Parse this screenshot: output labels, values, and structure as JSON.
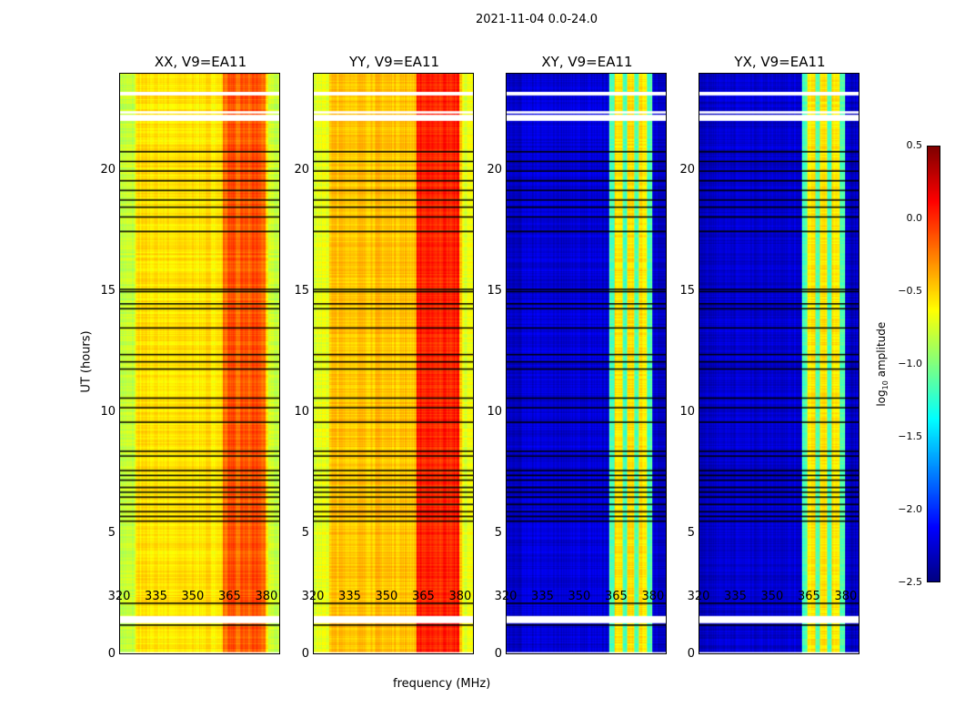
{
  "chart_data": {
    "type": "heatmap",
    "title": "2021-11-04 0.0-24.0",
    "xlabel": "frequency (MHz)",
    "ylabel": "UT (hours)",
    "xlim": [
      320,
      385.6
    ],
    "ylim": [
      0,
      24
    ],
    "xticks": [
      "320",
      "335",
      "350",
      "365",
      "380"
    ],
    "yticks": [
      "0",
      "5",
      "10",
      "15",
      "20"
    ],
    "panels": [
      {
        "title": "XX, V9=EA11",
        "base": -0.55,
        "edge": -0.8,
        "band": -0.2,
        "stripe": -0.1
      },
      {
        "title": "YY, V9=EA11",
        "base": -0.45,
        "edge": -0.7,
        "band": 0.05,
        "stripe": 0.0
      },
      {
        "title": "XY, V9=EA11",
        "base": -2.25,
        "edge": -2.3,
        "band": -1.15,
        "stripe": -0.55
      },
      {
        "title": "YX, V9=EA11",
        "base": -2.25,
        "edge": -2.3,
        "band": -1.15,
        "stripe": -0.55
      }
    ],
    "band_mhz": [
      362,
      380
    ],
    "flagged_white_hours": [
      [
        23.1,
        23.25
      ],
      [
        22.35,
        22.45
      ],
      [
        22.05,
        22.3
      ],
      [
        1.25,
        1.55
      ],
      [
        0.0,
        0.05
      ]
    ],
    "flagged_black_hours": [
      1.2,
      2.1,
      5.5,
      5.7,
      5.9,
      6.2,
      6.5,
      6.7,
      6.9,
      7.2,
      7.4,
      7.6,
      8.2,
      8.4,
      9.6,
      10.2,
      10.6,
      11.8,
      12.1,
      12.4,
      13.5,
      14.3,
      14.5,
      15.0,
      15.1,
      17.5,
      18.1,
      18.5,
      18.8,
      19.2,
      19.6,
      20.0,
      20.4,
      20.8
    ],
    "colorbar": {
      "label": "log10 amplitude",
      "range": [
        -2.5,
        0.5
      ],
      "ticks": [
        "0.5",
        "0.0",
        "−0.5",
        "−1.0",
        "−1.5",
        "−2.0",
        "−2.5"
      ],
      "colormap": "jet"
    }
  }
}
